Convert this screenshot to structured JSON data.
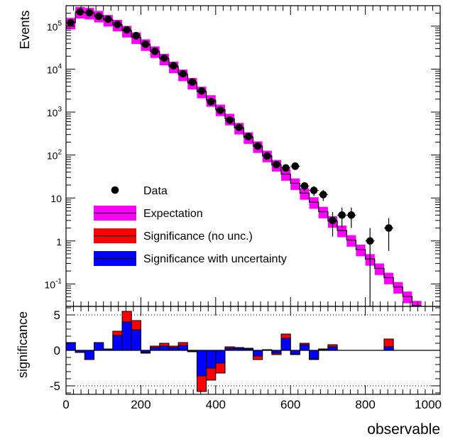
{
  "chart_data": [
    {
      "type": "histogram",
      "ylabel": "Events",
      "yscale": "log",
      "xlim": [
        0,
        1000
      ],
      "ylim": [
        0.03,
        300000
      ],
      "bin_width": 25,
      "bin_edges_start": 0,
      "xticks": [
        "0",
        "200",
        "400",
        "600",
        "800",
        "1000"
      ],
      "yticks": [
        {
          "base": "10",
          "exp": "5",
          "value": 100000
        },
        {
          "base": "10",
          "exp": "4",
          "value": 10000
        },
        {
          "base": "10",
          "exp": "3",
          "value": 1000
        },
        {
          "base": "10",
          "exp": "2",
          "value": 100
        },
        {
          "base": "10",
          "exp": "",
          "value": 10
        },
        {
          "base": "1",
          "exp": "",
          "value": 1
        },
        {
          "base": "10",
          "exp": "-1",
          "value": 0.1
        }
      ],
      "legend": {
        "position": "lower-left",
        "entries": [
          "Data",
          "Expectation",
          "Significance (no unc.)",
          "Significance with uncertainty"
        ]
      },
      "expectation": [
        120000,
        215000,
        205000,
        175000,
        140000,
        108000,
        78000,
        55000,
        38000,
        26000,
        17500,
        11500,
        7500,
        4800,
        3000,
        1900,
        1150,
        700,
        430,
        260,
        160,
        97,
        59,
        36,
        22,
        13,
        8,
        4.8,
        2.9,
        1.75,
        1.05,
        0.63,
        0.38,
        0.23,
        0.14,
        0.085,
        0.051,
        0.031
      ],
      "expectation_band_fraction": 0.3,
      "data": [
        {
          "x": 12.5,
          "y": 120000
        },
        {
          "x": 37.5,
          "y": 215000
        },
        {
          "x": 62.5,
          "y": 205000
        },
        {
          "x": 87.5,
          "y": 170000
        },
        {
          "x": 112.5,
          "y": 145000
        },
        {
          "x": 137.5,
          "y": 110000
        },
        {
          "x": 162.5,
          "y": 82000
        },
        {
          "x": 187.5,
          "y": 60000
        },
        {
          "x": 212.5,
          "y": 38000
        },
        {
          "x": 237.5,
          "y": 26000
        },
        {
          "x": 262.5,
          "y": 18000
        },
        {
          "x": 287.5,
          "y": 12000
        },
        {
          "x": 312.5,
          "y": 7800
        },
        {
          "x": 337.5,
          "y": 5000
        },
        {
          "x": 362.5,
          "y": 3100
        },
        {
          "x": 387.5,
          "y": 1750
        },
        {
          "x": 412.5,
          "y": 1100
        },
        {
          "x": 437.5,
          "y": 650
        },
        {
          "x": 462.5,
          "y": 440
        },
        {
          "x": 487.5,
          "y": 270
        },
        {
          "x": 512.5,
          "y": 162
        },
        {
          "x": 537.5,
          "y": 95
        },
        {
          "x": 562.5,
          "y": 60
        },
        {
          "x": 587.5,
          "y": 50
        },
        {
          "x": 612.5,
          "y": 55
        },
        {
          "x": 637.5,
          "y": 19
        },
        {
          "x": 662.5,
          "y": 15
        },
        {
          "x": 687.5,
          "y": 12
        },
        {
          "x": 712.5,
          "y": 3
        },
        {
          "x": 737.5,
          "y": 4
        },
        {
          "x": 762.5,
          "y": 4
        },
        {
          "x": 812.5,
          "y": 1
        },
        {
          "x": 862.5,
          "y": 2
        }
      ],
      "data_lower_extends_to_axis": [
        812.5
      ]
    },
    {
      "type": "histogram",
      "ylabel": "significance",
      "xlabel": "observable",
      "xlim": [
        0,
        1000
      ],
      "ylim": [
        -6.2,
        6.2
      ],
      "yticks": [
        "5",
        "0",
        "-5"
      ],
      "ytick_values": [
        5,
        0,
        -5
      ],
      "dotted_lines": [
        5,
        -5
      ],
      "series": [
        {
          "name": "Significance (no unc.)",
          "color": "#ff0000",
          "values": [
            1.1,
            -0.3,
            -1.3,
            1.1,
            0.2,
            2.7,
            5.5,
            4.2,
            -0.4,
            0.6,
            1.0,
            0.6,
            1.1,
            -0.2,
            -5.8,
            -4.2,
            -3.2,
            0.5,
            0.4,
            0.3,
            -1.3,
            0.1,
            -0.6,
            2.3,
            -0.6,
            1.0,
            -1.3,
            0.2,
            0.8,
            0.0,
            0.0,
            0.0,
            0.0,
            0.0,
            1.6,
            0.0,
            0.0,
            0.0,
            0.0,
            0.0
          ]
        },
        {
          "name": "Significance with uncertainty",
          "color": "#0000ff",
          "values": [
            1.1,
            -0.3,
            -1.3,
            1.1,
            0.2,
            2.1,
            4.0,
            2.9,
            -0.3,
            0.4,
            0.6,
            0.4,
            0.7,
            -0.1,
            -3.6,
            -2.5,
            -1.8,
            0.3,
            0.3,
            0.2,
            -0.8,
            0.1,
            -0.4,
            1.7,
            -0.5,
            0.8,
            -1.2,
            0.1,
            0.5,
            0.0,
            0.0,
            0.0,
            0.0,
            0.0,
            0.5,
            0.0,
            0.0,
            0.0,
            0.0,
            0.0
          ]
        }
      ]
    }
  ]
}
